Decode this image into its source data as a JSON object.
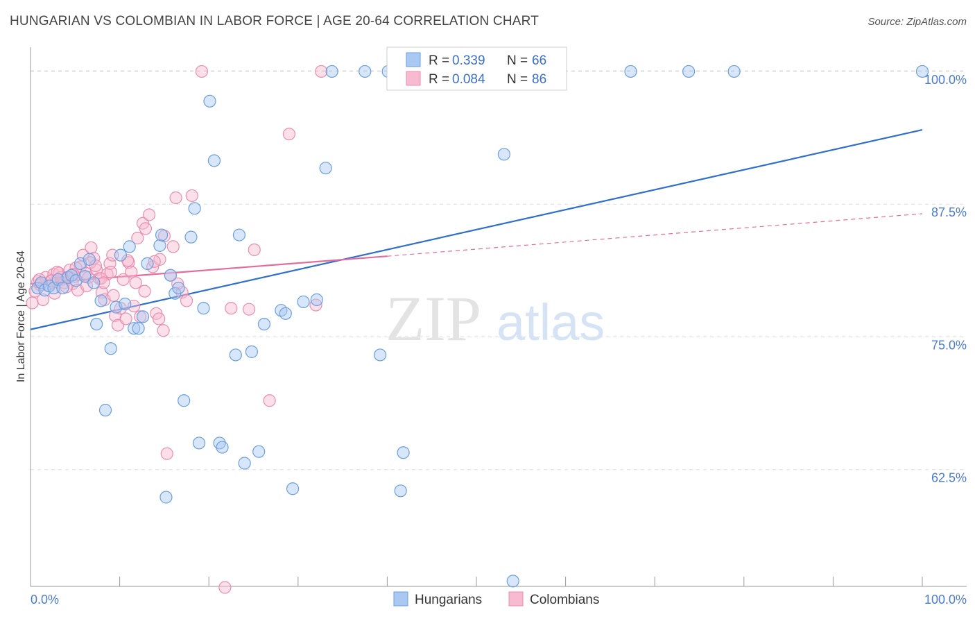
{
  "title": "HUNGARIAN VS COLOMBIAN IN LABOR FORCE | AGE 20-64 CORRELATION CHART",
  "source": "Source: ZipAtlas.com",
  "watermark": {
    "zip": "ZIP",
    "atlas": "atlas"
  },
  "colors": {
    "hungarian_fill": "#a9c8f2",
    "hungarian_stroke": "#6a9ee0",
    "hungarian_line": "#2e6fcc",
    "colombian_fill": "#f7bad0",
    "colombian_stroke": "#ea8db0",
    "colombian_line": "#e46c9a",
    "tick_text": "#4a7bd0",
    "grid": "#dddddd"
  },
  "legend": {
    "r_label": "R =",
    "n_label": "N =",
    "hungarian": {
      "r": "0.339",
      "n": "66"
    },
    "colombian": {
      "r": "0.084",
      "n": "86"
    }
  },
  "chart_data": {
    "type": "scatter",
    "title": "HUNGARIAN VS COLOMBIAN IN LABOR FORCE | AGE 20-64 CORRELATION CHART",
    "xlabel": "",
    "ylabel": "In Labor Force | Age 20-64",
    "xlim": [
      0,
      100
    ],
    "ylim": [
      51.5,
      101.5
    ],
    "x_tick_labels": [
      "0.0%",
      "100.0%"
    ],
    "y_ticks": [
      {
        "value": 62.5,
        "label": "62.5%"
      },
      {
        "value": 75.0,
        "label": "75.0%"
      },
      {
        "value": 87.5,
        "label": "87.5%"
      },
      {
        "value": 100.0,
        "label": "100.0%"
      }
    ],
    "grid": true,
    "legend_position": "top-center",
    "series": [
      {
        "name": "Hungarians",
        "color": "#a9c8f2",
        "trend": {
          "x": [
            0,
            100
          ],
          "y": [
            75.7,
            94.5
          ]
        },
        "points": [
          [
            0.8,
            79.6
          ],
          [
            1.2,
            80.1
          ],
          [
            1.6,
            79.4
          ],
          [
            2.1,
            79.8
          ],
          [
            2.6,
            79.6
          ],
          [
            3.1,
            80.4
          ],
          [
            3.6,
            79.6
          ],
          [
            4.2,
            80.6
          ],
          [
            4.6,
            80.8
          ],
          [
            5.1,
            80.3
          ],
          [
            5.6,
            81.9
          ],
          [
            6.1,
            80.7
          ],
          [
            6.6,
            82.3
          ],
          [
            7.1,
            80.1
          ],
          [
            7.4,
            76.2
          ],
          [
            7.9,
            78.4
          ],
          [
            8.4,
            68.1
          ],
          [
            9.0,
            73.9
          ],
          [
            9.6,
            77.8
          ],
          [
            10.1,
            82.7
          ],
          [
            10.6,
            78.1
          ],
          [
            11.1,
            83.5
          ],
          [
            11.6,
            75.8
          ],
          [
            12.1,
            75.8
          ],
          [
            12.6,
            76.9
          ],
          [
            13.1,
            81.9
          ],
          [
            14.5,
            83.6
          ],
          [
            14.7,
            84.6
          ],
          [
            15.2,
            59.9
          ],
          [
            15.7,
            80.8
          ],
          [
            16.2,
            79.1
          ],
          [
            16.6,
            79.6
          ],
          [
            17.2,
            69.0
          ],
          [
            18.0,
            84.4
          ],
          [
            18.4,
            87.1
          ],
          [
            18.9,
            65.0
          ],
          [
            19.4,
            77.7
          ],
          [
            20.1,
            97.2
          ],
          [
            20.6,
            91.6
          ],
          [
            21.2,
            65.0
          ],
          [
            21.5,
            64.6
          ],
          [
            23.0,
            73.3
          ],
          [
            23.4,
            84.6
          ],
          [
            24.0,
            63.1
          ],
          [
            24.8,
            73.6
          ],
          [
            25.6,
            64.2
          ],
          [
            26.2,
            76.2
          ],
          [
            28.1,
            77.5
          ],
          [
            28.6,
            77.2
          ],
          [
            29.4,
            60.7
          ],
          [
            30.6,
            78.3
          ],
          [
            32.1,
            78.5
          ],
          [
            33.1,
            90.9
          ],
          [
            33.8,
            100.0
          ],
          [
            37.5,
            100.0
          ],
          [
            39.2,
            73.3
          ],
          [
            40.1,
            100.0
          ],
          [
            41.5,
            60.5
          ],
          [
            41.8,
            64.1
          ],
          [
            50.0,
            100.0
          ],
          [
            53.1,
            92.2
          ],
          [
            54.1,
            52.0
          ],
          [
            67.3,
            100.0
          ],
          [
            73.8,
            100.0
          ],
          [
            78.9,
            100.0
          ],
          [
            100.0,
            100.0
          ]
        ]
      },
      {
        "name": "Colombians",
        "color": "#f7bad0",
        "trend": {
          "x": [
            0,
            40
          ],
          "y": [
            80.0,
            82.6
          ]
        },
        "trend_dashed": {
          "x": [
            40,
            100
          ],
          "y": [
            82.6,
            86.6
          ]
        },
        "points": [
          [
            0.2,
            78.2
          ],
          [
            0.5,
            79.3
          ],
          [
            0.8,
            80.2
          ],
          [
            1.1,
            79.9
          ],
          [
            1.4,
            78.5
          ],
          [
            1.7,
            80.6
          ],
          [
            2.0,
            79.8
          ],
          [
            2.3,
            80.3
          ],
          [
            2.6,
            80.9
          ],
          [
            2.9,
            80.2
          ],
          [
            3.2,
            81.0
          ],
          [
            3.5,
            80.4
          ],
          [
            3.8,
            80.1
          ],
          [
            4.1,
            80.5
          ],
          [
            4.4,
            81.3
          ],
          [
            4.7,
            80.0
          ],
          [
            5.0,
            80.7
          ],
          [
            5.3,
            79.4
          ],
          [
            5.6,
            81.6
          ],
          [
            5.9,
            82.7
          ],
          [
            6.2,
            81.0
          ],
          [
            6.5,
            80.6
          ],
          [
            6.8,
            83.4
          ],
          [
            7.1,
            82.4
          ],
          [
            7.4,
            81.3
          ],
          [
            7.7,
            80.5
          ],
          [
            8.0,
            79.2
          ],
          [
            8.3,
            78.5
          ],
          [
            8.6,
            80.9
          ],
          [
            8.9,
            81.9
          ],
          [
            9.2,
            82.7
          ],
          [
            9.5,
            77.0
          ],
          [
            9.8,
            76.1
          ],
          [
            10.1,
            77.7
          ],
          [
            10.4,
            80.4
          ],
          [
            10.7,
            76.7
          ],
          [
            11.0,
            82.0
          ],
          [
            11.3,
            81.1
          ],
          [
            11.6,
            77.9
          ],
          [
            12.0,
            84.3
          ],
          [
            12.3,
            76.9
          ],
          [
            12.6,
            85.7
          ],
          [
            12.9,
            85.2
          ],
          [
            13.3,
            86.5
          ],
          [
            13.7,
            81.6
          ],
          [
            14.1,
            77.2
          ],
          [
            14.5,
            82.3
          ],
          [
            14.9,
            75.6
          ],
          [
            15.3,
            64.0
          ],
          [
            15.7,
            80.8
          ],
          [
            16.0,
            83.5
          ],
          [
            16.3,
            88.1
          ],
          [
            17.0,
            79.2
          ],
          [
            17.5,
            78.4
          ],
          [
            18.1,
            88.3
          ],
          [
            19.2,
            100.0
          ],
          [
            21.8,
            51.4
          ],
          [
            22.5,
            77.7
          ],
          [
            24.5,
            77.6
          ],
          [
            25.1,
            83.2
          ],
          [
            26.8,
            69.0
          ],
          [
            29.0,
            94.1
          ],
          [
            32.0,
            78.0
          ],
          [
            32.6,
            100.0
          ],
          [
            2.4,
            80.3
          ],
          [
            3.4,
            80.6
          ],
          [
            4.0,
            79.7
          ],
          [
            5.1,
            81.5
          ],
          [
            6.3,
            79.8
          ],
          [
            6.7,
            82.0
          ],
          [
            7.9,
            80.5
          ],
          [
            9.0,
            81.1
          ],
          [
            10.9,
            82.2
          ],
          [
            11.8,
            80.1
          ],
          [
            12.8,
            79.3
          ],
          [
            13.9,
            82.1
          ],
          [
            15.0,
            84.5
          ],
          [
            16.5,
            80.0
          ],
          [
            4.8,
            80.9
          ],
          [
            7.3,
            81.7
          ],
          [
            3.0,
            81.1
          ],
          [
            1.0,
            80.4
          ],
          [
            2.7,
            79.1
          ],
          [
            8.2,
            80.1
          ],
          [
            14.4,
            76.7
          ],
          [
            9.3,
            78.9
          ]
        ]
      }
    ]
  }
}
